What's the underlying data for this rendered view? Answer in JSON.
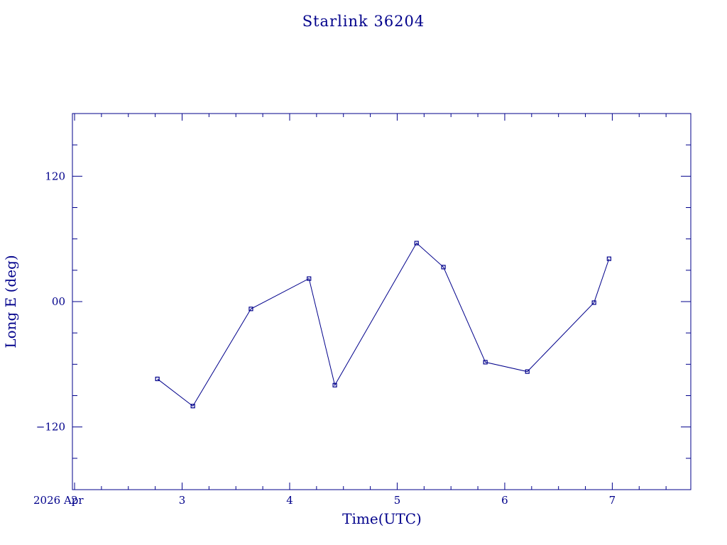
{
  "chart_data": {
    "type": "line",
    "title": "Starlink 36204",
    "xlabel": "Time(UTC)",
    "ylabel": "Long E (deg)",
    "x_prefix": "2026 Apr",
    "x_ticks": [
      {
        "x": 2,
        "label": "2"
      },
      {
        "x": 3,
        "label": "3"
      },
      {
        "x": 4,
        "label": "4"
      },
      {
        "x": 5,
        "label": "5"
      },
      {
        "x": 6,
        "label": "6"
      },
      {
        "x": 7,
        "label": "7"
      }
    ],
    "y_ticks": [
      {
        "y": -120,
        "label": "−120"
      },
      {
        "y": 0,
        "label": "00"
      },
      {
        "y": 120,
        "label": "120"
      }
    ],
    "xlim": [
      1.98,
      7.73
    ],
    "ylim": [
      -180,
      180
    ],
    "series": [
      {
        "color": "#00008b",
        "marker": "square",
        "x": [
          2.77,
          3.1,
          3.64,
          4.18,
          4.42,
          5.18,
          5.43,
          5.82,
          6.21,
          6.83,
          6.97
        ],
        "y": [
          -74,
          -100,
          -7,
          22,
          -80,
          56,
          33,
          -58,
          -67,
          -1,
          41
        ]
      }
    ],
    "grid": false,
    "legend": "none"
  }
}
